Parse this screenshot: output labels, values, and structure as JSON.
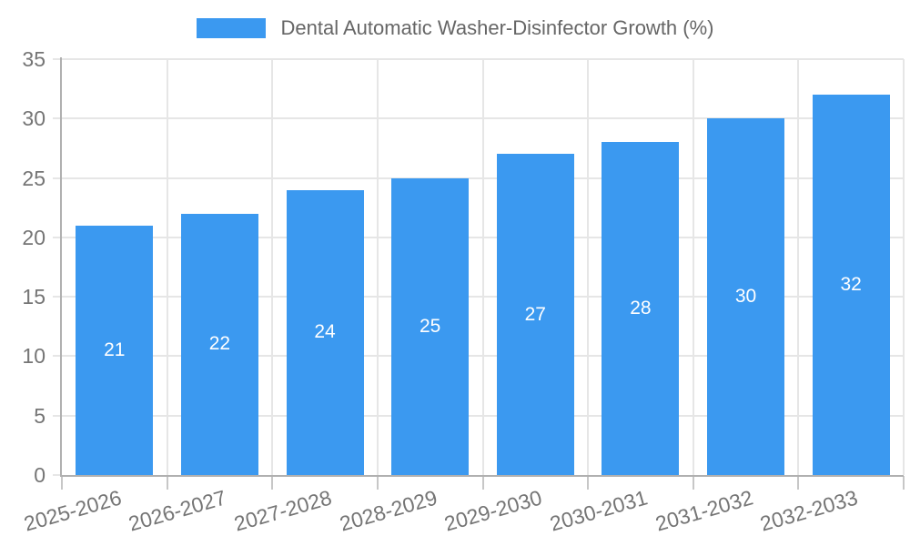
{
  "legend": {
    "label": "Dental Automatic Washer-Disinfector Growth (%)"
  },
  "chart_data": {
    "type": "bar",
    "title": "",
    "categories": [
      "2025-2026",
      "2026-2027",
      "2027-2028",
      "2028-2029",
      "2029-2030",
      "2030-2031",
      "2031-2032",
      "2032-2033"
    ],
    "series": [
      {
        "name": "Dental Automatic Washer-Disinfector Growth (%)",
        "values": [
          21,
          22,
          24,
          25,
          27,
          28,
          30,
          32
        ]
      }
    ],
    "value_labels_shown": true,
    "xlabel": "",
    "ylabel": "",
    "ylim": [
      0,
      35
    ],
    "yticks": [
      0,
      5,
      10,
      15,
      20,
      25,
      30,
      35
    ],
    "grid": true,
    "legend_position": "top",
    "colors": {
      "bar": "#3B99F0",
      "value_label": "#ffffff",
      "grid_line": "#e6e6e6",
      "axis_line": "#b0b0b0",
      "tick_label": "#757575",
      "legend_text": "#666666",
      "background": "#ffffff"
    }
  }
}
